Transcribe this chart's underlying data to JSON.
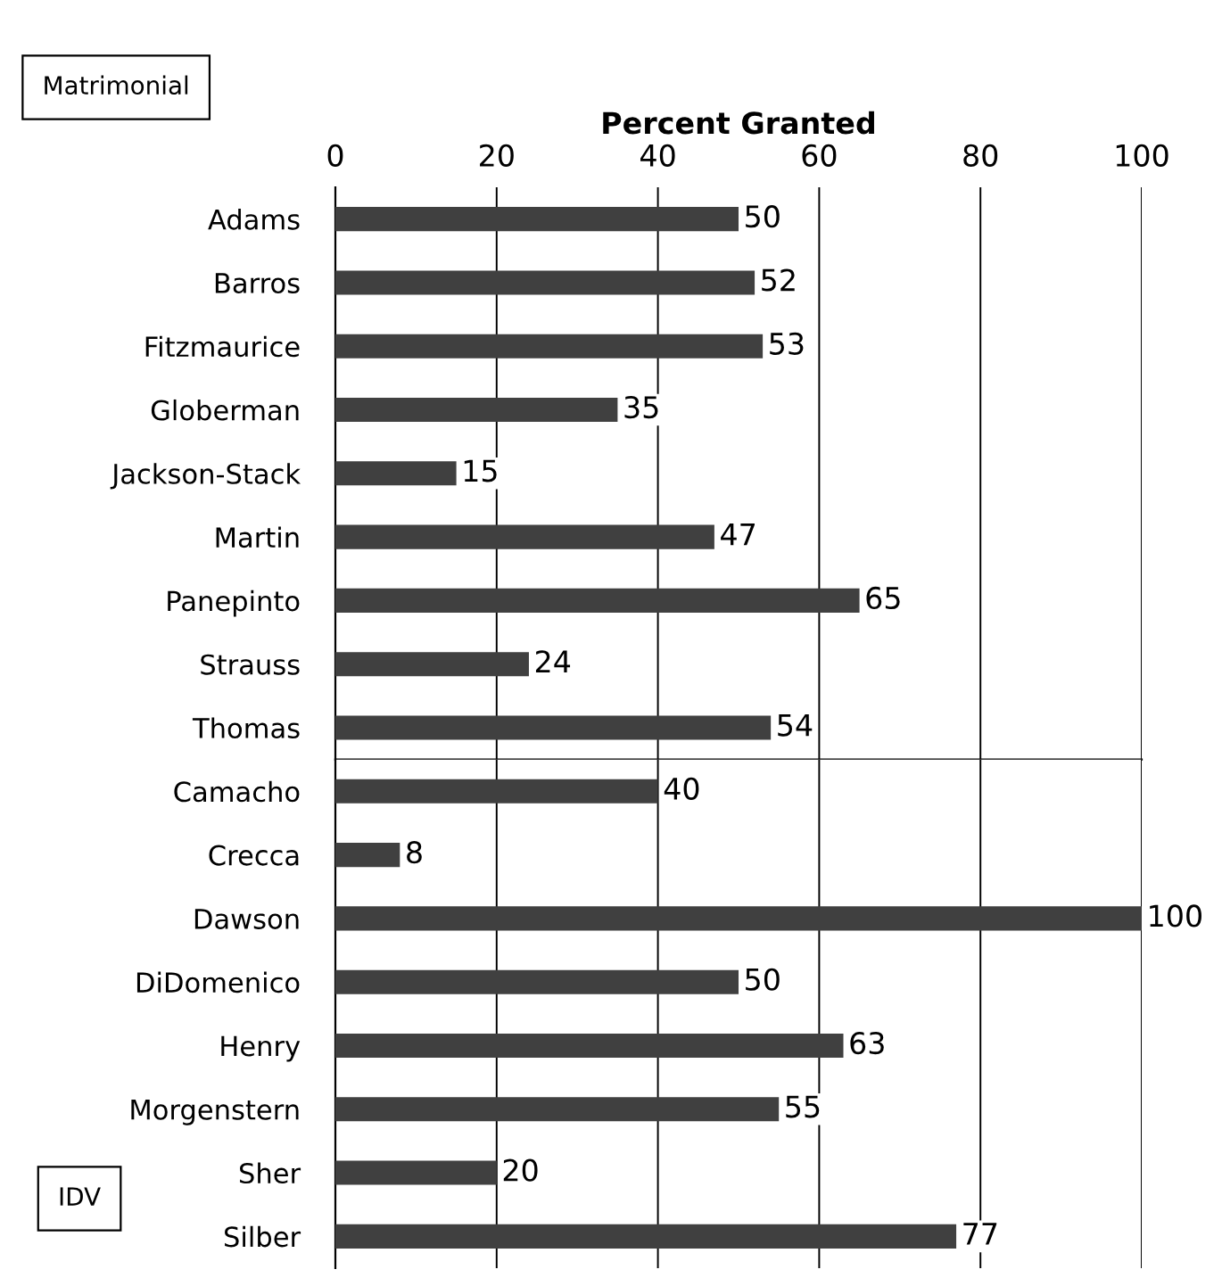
{
  "chart_data": [
    {
      "type": "bar",
      "orientation": "horizontal",
      "xlabel": "Percent Granted",
      "annotations": [
        "Matrimonial"
      ],
      "categories": [
        "Adams",
        "Barros",
        "Fitzmaurice",
        "Globerman",
        "Jackson-Stack",
        "Martin",
        "Panepinto",
        "Strauss",
        "Thomas"
      ],
      "values": [
        50,
        52,
        53,
        35,
        15,
        47,
        65,
        24,
        54
      ],
      "color": "#404040",
      "xlim": [
        0,
        100
      ],
      "xticks": [
        0,
        20,
        40,
        60,
        80,
        100
      ],
      "grid": "x",
      "data_labels": true
    },
    {
      "type": "bar",
      "orientation": "horizontal",
      "annotations": [
        "IDV"
      ],
      "categories": [
        "Camacho",
        "Crecca",
        "Dawson",
        "DiDomenico",
        "Henry",
        "Morgenstern",
        "Sher",
        "Silber"
      ],
      "values": [
        40,
        8,
        100,
        50,
        63,
        55,
        20,
        77
      ],
      "color": "#404040",
      "xlim": [
        0,
        100
      ],
      "xticks": [
        0,
        20,
        40,
        60,
        80,
        100
      ],
      "grid": "x",
      "data_labels": true,
      "tick_labels": "y"
    }
  ]
}
